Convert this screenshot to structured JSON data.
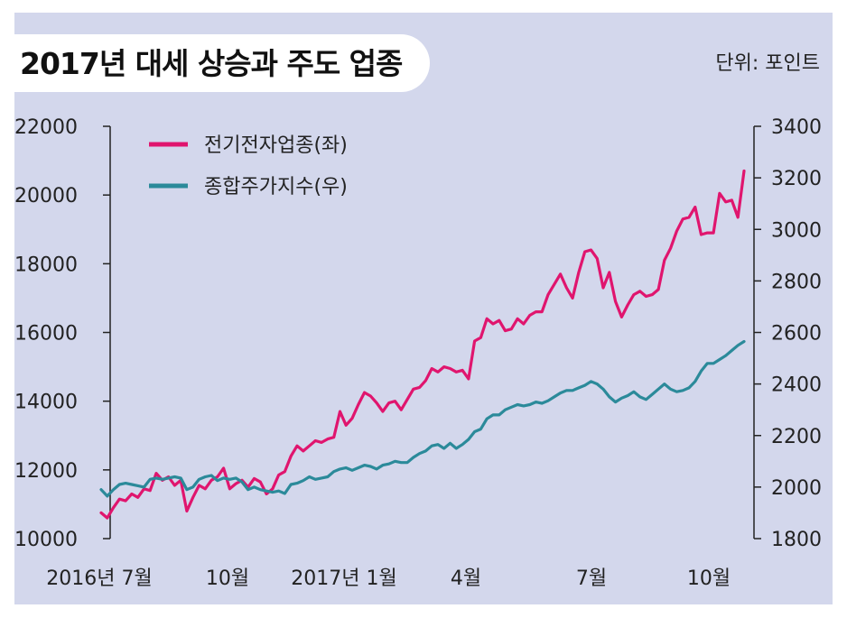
{
  "header": {
    "title": "2017년 대세 상승과 주도 업종",
    "unit": "단위: 포인트"
  },
  "chart_data": {
    "type": "line",
    "title": "2017년 대세 상승과 주도 업종",
    "unit_label": "단위: 포인트",
    "x_tick_labels": [
      "2016년 7월",
      "10월",
      "2017년 1월",
      "4월",
      "7월",
      "10월"
    ],
    "legend_position": "top-left",
    "grid": false,
    "y_left": {
      "ylim": [
        10000,
        22000
      ],
      "ticks": [
        10000,
        12000,
        14000,
        16000,
        18000,
        20000,
        22000
      ]
    },
    "y_right": {
      "ylim": [
        1800,
        3400
      ],
      "ticks": [
        1800,
        2000,
        2200,
        2400,
        2600,
        2800,
        3000,
        3200,
        3400
      ]
    },
    "series": [
      {
        "name": "전기전자업종(좌)",
        "axis": "left",
        "color": "#e0156e",
        "values": [
          10750,
          10600,
          10900,
          11150,
          11100,
          11300,
          11200,
          11450,
          11400,
          11900,
          11700,
          11800,
          11550,
          11700,
          10800,
          11200,
          11550,
          11450,
          11700,
          11800,
          12050,
          11450,
          11600,
          11700,
          11500,
          11750,
          11650,
          11300,
          11450,
          11850,
          11950,
          12400,
          12700,
          12550,
          12700,
          12850,
          12800,
          12900,
          12950,
          13700,
          13300,
          13500,
          13900,
          14250,
          14150,
          13950,
          13700,
          13950,
          14000,
          13750,
          14050,
          14350,
          14400,
          14600,
          14950,
          14850,
          15000,
          14950,
          14850,
          14900,
          14650,
          15750,
          15850,
          16400,
          16250,
          16350,
          16050,
          16100,
          16400,
          16250,
          16500,
          16600,
          16600,
          17100,
          17400,
          17700,
          17300,
          17000,
          17750,
          18350,
          18400,
          18150,
          17300,
          17750,
          16900,
          16450,
          16800,
          17100,
          17200,
          17050,
          17100,
          17250,
          18100,
          18450,
          18950,
          19300,
          19350,
          19650,
          18850,
          18900,
          18900,
          20050,
          19800,
          19850,
          19350,
          20700
        ]
      },
      {
        "name": "종합주가지수(우)",
        "axis": "right",
        "color": "#2b8a9a",
        "values": [
          1990,
          1965,
          1990,
          2010,
          2015,
          2010,
          2005,
          2000,
          2030,
          2035,
          2030,
          2035,
          2040,
          2035,
          1990,
          2000,
          2030,
          2040,
          2045,
          2025,
          2035,
          2030,
          2035,
          2020,
          1990,
          2000,
          1990,
          1985,
          1980,
          1985,
          1975,
          2010,
          2015,
          2025,
          2040,
          2030,
          2035,
          2040,
          2060,
          2070,
          2075,
          2065,
          2075,
          2085,
          2080,
          2070,
          2085,
          2090,
          2100,
          2095,
          2095,
          2115,
          2130,
          2140,
          2160,
          2165,
          2150,
          2170,
          2150,
          2165,
          2185,
          2215,
          2225,
          2265,
          2280,
          2280,
          2300,
          2310,
          2320,
          2315,
          2320,
          2330,
          2325,
          2335,
          2350,
          2365,
          2375,
          2375,
          2385,
          2395,
          2410,
          2400,
          2380,
          2350,
          2330,
          2345,
          2355,
          2370,
          2350,
          2340,
          2360,
          2380,
          2400,
          2380,
          2370,
          2375,
          2385,
          2410,
          2450,
          2480,
          2480,
          2495,
          2510,
          2530,
          2550,
          2565
        ]
      }
    ]
  }
}
